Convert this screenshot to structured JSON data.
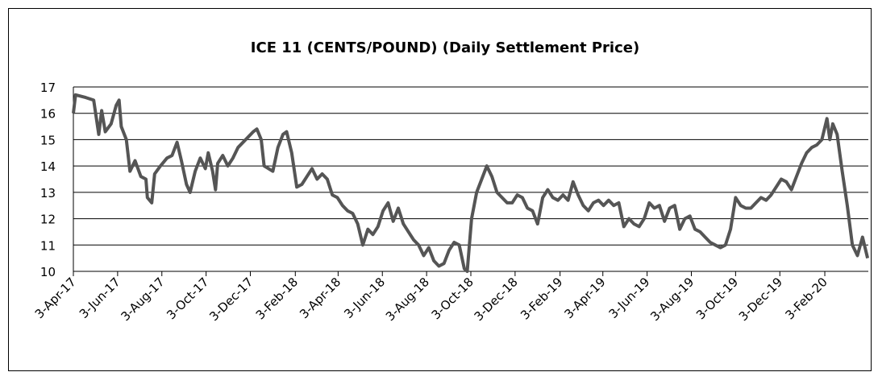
{
  "chart_data": {
    "type": "line",
    "title": "ICE 11 (CENTS/POUND) (Daily Settlement Price)",
    "x": [
      "2017-04-03",
      "2017-04-06",
      "2017-04-20",
      "2017-05-01",
      "2017-05-08",
      "2017-05-12",
      "2017-05-17",
      "2017-05-25",
      "2017-06-01",
      "2017-06-05",
      "2017-06-08",
      "2017-06-15",
      "2017-06-20",
      "2017-06-27",
      "2017-07-05",
      "2017-07-12",
      "2017-07-14",
      "2017-07-20",
      "2017-07-24",
      "2017-08-01",
      "2017-08-10",
      "2017-08-17",
      "2017-08-24",
      "2017-08-30",
      "2017-09-06",
      "2017-09-11",
      "2017-09-18",
      "2017-09-25",
      "2017-10-02",
      "2017-10-06",
      "2017-10-12",
      "2017-10-16",
      "2017-10-19",
      "2017-10-26",
      "2017-11-02",
      "2017-11-09",
      "2017-11-16",
      "2017-11-23",
      "2017-11-30",
      "2017-12-07",
      "2017-12-12",
      "2017-12-18",
      "2017-12-22",
      "2018-01-03",
      "2018-01-10",
      "2018-01-17",
      "2018-01-22",
      "2018-01-29",
      "2018-02-05",
      "2018-02-12",
      "2018-02-19",
      "2018-02-26",
      "2018-03-05",
      "2018-03-12",
      "2018-03-19",
      "2018-03-26",
      "2018-04-02",
      "2018-04-09",
      "2018-04-16",
      "2018-04-23",
      "2018-04-30",
      "2018-05-07",
      "2018-05-14",
      "2018-05-21",
      "2018-05-28",
      "2018-06-04",
      "2018-06-11",
      "2018-06-18",
      "2018-06-25",
      "2018-07-02",
      "2018-07-09",
      "2018-07-16",
      "2018-07-23",
      "2018-07-30",
      "2018-08-06",
      "2018-08-13",
      "2018-08-20",
      "2018-08-27",
      "2018-09-03",
      "2018-09-10",
      "2018-09-17",
      "2018-09-24",
      "2018-09-28",
      "2018-10-04",
      "2018-10-11",
      "2018-10-18",
      "2018-10-25",
      "2018-11-01",
      "2018-11-08",
      "2018-11-15",
      "2018-11-22",
      "2018-11-29",
      "2018-12-06",
      "2018-12-13",
      "2018-12-20",
      "2018-12-27",
      "2019-01-03",
      "2019-01-10",
      "2019-01-17",
      "2019-01-24",
      "2019-01-31",
      "2019-02-07",
      "2019-02-14",
      "2019-02-21",
      "2019-02-28",
      "2019-03-07",
      "2019-03-14",
      "2019-03-21",
      "2019-03-28",
      "2019-04-04",
      "2019-04-11",
      "2019-04-18",
      "2019-04-25",
      "2019-05-02",
      "2019-05-09",
      "2019-05-16",
      "2019-05-23",
      "2019-05-30",
      "2019-06-06",
      "2019-06-13",
      "2019-06-20",
      "2019-06-27",
      "2019-07-04",
      "2019-07-11",
      "2019-07-18",
      "2019-07-25",
      "2019-08-01",
      "2019-08-08",
      "2019-08-15",
      "2019-08-22",
      "2019-08-29",
      "2019-09-05",
      "2019-09-12",
      "2019-09-19",
      "2019-09-26",
      "2019-10-03",
      "2019-10-10",
      "2019-10-17",
      "2019-10-24",
      "2019-10-31",
      "2019-11-07",
      "2019-11-14",
      "2019-11-21",
      "2019-11-28",
      "2019-12-05",
      "2019-12-12",
      "2019-12-19",
      "2019-12-26",
      "2020-01-02",
      "2020-01-09",
      "2020-01-16",
      "2020-01-23",
      "2020-01-30",
      "2020-02-06",
      "2020-02-10",
      "2020-02-14",
      "2020-02-20",
      "2020-02-27",
      "2020-03-05",
      "2020-03-12",
      "2020-03-19",
      "2020-03-26",
      "2020-04-02"
    ],
    "series": [
      {
        "color": "#555555",
        "values": [
          16.0,
          16.7,
          16.6,
          16.5,
          15.2,
          16.1,
          15.3,
          15.6,
          16.3,
          16.5,
          15.5,
          15.0,
          13.8,
          14.2,
          13.6,
          13.5,
          12.8,
          12.6,
          13.7,
          14.0,
          14.3,
          14.4,
          14.9,
          14.2,
          13.3,
          13.0,
          13.8,
          14.3,
          13.9,
          14.5,
          13.8,
          13.1,
          14.1,
          14.4,
          14.0,
          14.3,
          14.7,
          14.9,
          15.1,
          15.3,
          15.4,
          15.0,
          14.0,
          13.8,
          14.7,
          15.2,
          15.3,
          14.5,
          13.2,
          13.3,
          13.6,
          13.9,
          13.5,
          13.7,
          13.5,
          12.9,
          12.8,
          12.5,
          12.3,
          12.2,
          11.8,
          11.0,
          11.6,
          11.4,
          11.7,
          12.3,
          12.6,
          11.9,
          12.4,
          11.8,
          11.5,
          11.2,
          11.0,
          10.6,
          10.9,
          10.4,
          10.2,
          10.3,
          10.8,
          11.1,
          11.0,
          10.1,
          10.0,
          12.0,
          13.0,
          13.5,
          14.0,
          13.6,
          13.0,
          12.8,
          12.6,
          12.6,
          12.9,
          12.8,
          12.4,
          12.3,
          11.8,
          12.8,
          13.1,
          12.8,
          12.7,
          12.9,
          12.7,
          13.4,
          12.9,
          12.5,
          12.3,
          12.6,
          12.7,
          12.5,
          12.7,
          12.5,
          12.6,
          11.7,
          12.0,
          11.8,
          11.7,
          12.0,
          12.6,
          12.4,
          12.5,
          11.9,
          12.4,
          12.5,
          11.6,
          12.0,
          12.1,
          11.6,
          11.5,
          11.3,
          11.1,
          11.0,
          10.9,
          11.0,
          11.6,
          12.8,
          12.5,
          12.4,
          12.4,
          12.6,
          12.8,
          12.7,
          12.9,
          13.2,
          13.5,
          13.4,
          13.1,
          13.6,
          14.1,
          14.5,
          14.7,
          14.8,
          15.0,
          15.8,
          15.0,
          15.6,
          15.2,
          13.8,
          12.5,
          11.0,
          10.6,
          11.3,
          10.5
        ]
      }
    ],
    "xlim": [
      "2017-04-03",
      "2020-04-03"
    ],
    "xticks": [
      {
        "value": "2017-04-03",
        "label": "3-Apr-17"
      },
      {
        "value": "2017-06-03",
        "label": "3-Jun-17"
      },
      {
        "value": "2017-08-03",
        "label": "3-Aug-17"
      },
      {
        "value": "2017-10-03",
        "label": "3-Oct-17"
      },
      {
        "value": "2017-12-03",
        "label": "3-Dec-17"
      },
      {
        "value": "2018-02-03",
        "label": "3-Feb-18"
      },
      {
        "value": "2018-04-03",
        "label": "3-Apr-18"
      },
      {
        "value": "2018-06-03",
        "label": "3-Jun-18"
      },
      {
        "value": "2018-08-03",
        "label": "3-Aug-18"
      },
      {
        "value": "2018-10-03",
        "label": "3-Oct-18"
      },
      {
        "value": "2018-12-03",
        "label": "3-Dec-18"
      },
      {
        "value": "2019-02-03",
        "label": "3-Feb-19"
      },
      {
        "value": "2019-04-03",
        "label": "3-Apr-19"
      },
      {
        "value": "2019-06-03",
        "label": "3-Jun-19"
      },
      {
        "value": "2019-08-03",
        "label": "3-Aug-19"
      },
      {
        "value": "2019-10-03",
        "label": "3-Oct-19"
      },
      {
        "value": "2019-12-03",
        "label": "3-Dec-19"
      },
      {
        "value": "2020-02-03",
        "label": "3-Feb-20"
      }
    ],
    "ylim": [
      10,
      17
    ],
    "yticks": [
      10,
      11,
      12,
      13,
      14,
      15,
      16,
      17
    ],
    "grid": true
  }
}
